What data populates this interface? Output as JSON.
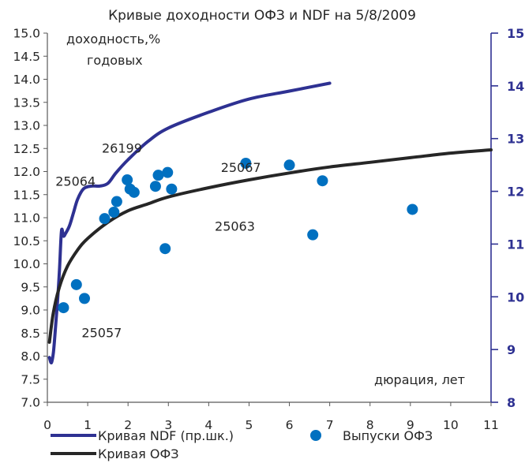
{
  "chart_data": {
    "type": "scatter",
    "title": "Кривые доходности ОФЗ и NDF на 5/8/2009",
    "ylabel": "доходность,%",
    "ylabel_line2": "годовых",
    "xlabel": "дюрация, лет",
    "xlim": [
      0,
      11
    ],
    "ylim": [
      7.0,
      15.0
    ],
    "y2lim": [
      8,
      15
    ],
    "grid": false,
    "legend_position": "bottom",
    "x_ticks": [
      "0",
      "1",
      "2",
      "3",
      "4",
      "5",
      "6",
      "7",
      "8",
      "9",
      "10",
      "11"
    ],
    "y_ticks": [
      "7.0",
      "7.5",
      "8.0",
      "8.5",
      "9.0",
      "9.5",
      "10.0",
      "10.5",
      "11.0",
      "11.5",
      "12.0",
      "12.5",
      "13.0",
      "13.5",
      "14.0",
      "14.5",
      "15.0"
    ],
    "y2_ticks": [
      "8",
      "9",
      "10",
      "11",
      "12",
      "13",
      "14",
      "15"
    ],
    "series": [
      {
        "name": "Кривая NDF (пр.шк.)",
        "kind": "line",
        "axis": "right",
        "color": "#2e3192",
        "x": [
          0.05,
          0.1,
          0.15,
          0.2,
          0.25,
          0.3,
          0.35,
          0.4,
          0.45,
          0.55,
          0.65,
          0.75,
          0.9,
          1.1,
          1.3,
          1.5,
          1.7,
          2.0,
          2.5,
          3.0,
          4.0,
          5.0,
          6.0,
          7.0
        ],
        "y": [
          8.85,
          8.75,
          8.95,
          9.4,
          9.9,
          10.5,
          11.25,
          11.15,
          11.2,
          11.35,
          11.6,
          11.85,
          12.05,
          12.1,
          12.1,
          12.15,
          12.35,
          12.6,
          12.95,
          13.2,
          13.5,
          13.75,
          13.9,
          14.05
        ]
      },
      {
        "name": "Кривая ОФЗ",
        "kind": "line",
        "axis": "left",
        "color": "#262626",
        "x": [
          0.05,
          0.15,
          0.3,
          0.5,
          0.75,
          1.0,
          1.5,
          2.0,
          2.5,
          3.0,
          4.0,
          5.0,
          6.0,
          7.0,
          8.0,
          9.0,
          10.0,
          11.0
        ],
        "y": [
          8.3,
          8.95,
          9.5,
          9.95,
          10.3,
          10.55,
          10.9,
          11.15,
          11.3,
          11.45,
          11.65,
          11.82,
          11.97,
          12.1,
          12.2,
          12.3,
          12.4,
          12.47
        ]
      },
      {
        "name": "Выпуски ОФЗ",
        "kind": "scatter",
        "axis": "left",
        "color": "#0070c0",
        "points": [
          [
            0.4,
            9.05
          ],
          [
            0.72,
            9.55
          ],
          [
            0.92,
            9.25
          ],
          [
            1.42,
            10.98
          ],
          [
            1.65,
            11.12
          ],
          [
            1.72,
            11.35
          ],
          [
            1.98,
            11.82
          ],
          [
            2.05,
            11.62
          ],
          [
            2.15,
            11.55
          ],
          [
            2.68,
            11.68
          ],
          [
            2.75,
            11.92
          ],
          [
            2.92,
            10.33
          ],
          [
            2.98,
            11.98
          ],
          [
            3.08,
            11.62
          ],
          [
            4.92,
            12.18
          ],
          [
            6.0,
            12.14
          ],
          [
            6.58,
            10.63
          ],
          [
            6.82,
            11.8
          ],
          [
            9.05,
            11.18
          ]
        ]
      }
    ],
    "annotations": [
      {
        "text": "26199",
        "x": 1.35,
        "y": 12.5
      },
      {
        "text": "25064",
        "x": 0.2,
        "y": 11.78
      },
      {
        "text": "25067",
        "x": 4.3,
        "y": 12.08
      },
      {
        "text": "25063",
        "x": 4.15,
        "y": 10.8
      },
      {
        "text": "25057",
        "x": 0.85,
        "y": 8.5
      }
    ]
  }
}
